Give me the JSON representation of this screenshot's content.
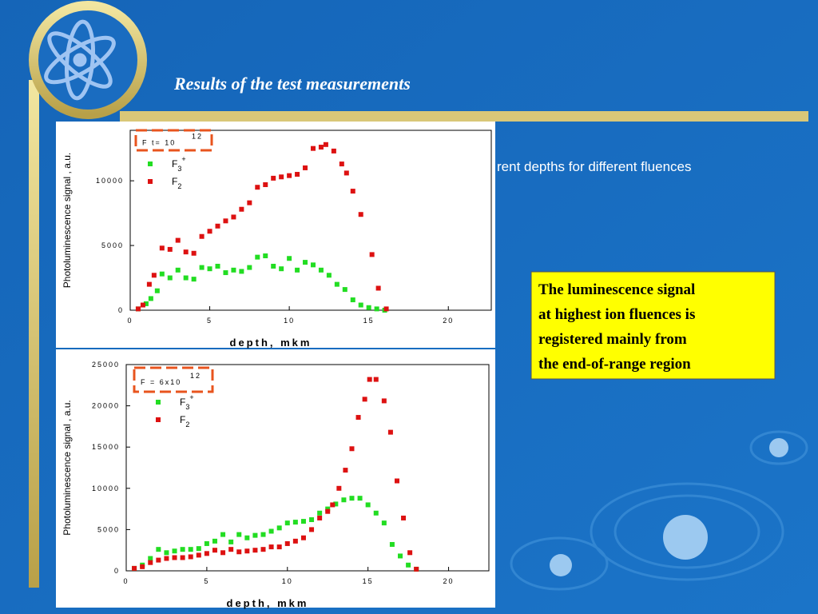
{
  "slide": {
    "title": "Results of the test measurements",
    "partial_text": "rent depths for different fluences",
    "note_lines": [
      "The luminescence signal",
      "at highest ion fluences is",
      "registered mainly from",
      "the end-of-range region"
    ]
  },
  "chart_data": [
    {
      "type": "scatter",
      "xlabel": "depth, mkm",
      "ylabel": "Photoluminescence signal , a.u.",
      "annotation": {
        "text": "F t= 10",
        "exponent": "12"
      },
      "xlim": [
        0,
        22.7
      ],
      "ylim": [
        0,
        13900
      ],
      "xticks": [
        0,
        5,
        10,
        15,
        20
      ],
      "yticks": [
        0,
        5000,
        10000
      ],
      "series": [
        {
          "name": "F3+",
          "color": "#22dd22",
          "x": [
            0.5,
            1,
            1.3,
            1.7,
            2,
            2.5,
            3,
            3.5,
            4,
            4.5,
            5,
            5.5,
            6,
            6.5,
            7,
            7.5,
            8,
            8.5,
            9,
            9.5,
            10,
            10.5,
            11,
            11.5,
            12,
            12.5,
            13,
            13.5,
            14,
            14.5,
            15,
            15.5,
            16
          ],
          "values": [
            100,
            500,
            900,
            1500,
            2800,
            2500,
            3100,
            2500,
            2400,
            3300,
            3200,
            3400,
            2900,
            3100,
            3000,
            3300,
            4100,
            4200,
            3400,
            3200,
            4000,
            3100,
            3700,
            3500,
            3100,
            2700,
            2000,
            1600,
            800,
            400,
            200,
            100,
            0
          ]
        },
        {
          "name": "F2",
          "color": "#dd1111",
          "x": [
            0.5,
            0.8,
            1.2,
            1.5,
            2,
            2.5,
            3,
            3.5,
            4,
            4.5,
            5,
            5.5,
            6,
            6.5,
            7,
            7.5,
            8,
            8.5,
            9,
            9.5,
            10,
            10.5,
            11,
            11.5,
            12,
            12.3,
            12.8,
            13.3,
            13.6,
            14,
            14.5,
            15.2,
            15.6,
            16.1
          ],
          "values": [
            100,
            400,
            2000,
            2700,
            4800,
            4700,
            5400,
            4500,
            4400,
            5700,
            6100,
            6500,
            6900,
            7200,
            7800,
            8300,
            9500,
            9700,
            10200,
            10300,
            10400,
            10500,
            11000,
            12500,
            12600,
            12800,
            12300,
            11300,
            10600,
            9200,
            7400,
            4300,
            1700,
            100
          ]
        }
      ]
    },
    {
      "type": "scatter",
      "xlabel": "depth, mkm",
      "ylabel": "Photoluminescence signal , a.u.",
      "annotation": {
        "text": "F = 6x10",
        "exponent": "12"
      },
      "xlim": [
        0,
        22.5
      ],
      "ylim": [
        0,
        25000
      ],
      "xticks": [
        0,
        5,
        10,
        15,
        20
      ],
      "yticks": [
        0,
        5000,
        10000,
        15000,
        20000,
        25000
      ],
      "series": [
        {
          "name": "F3+",
          "color": "#22dd22",
          "x": [
            0.5,
            1,
            1.5,
            2,
            2.5,
            3,
            3.5,
            4,
            4.5,
            5,
            5.5,
            6,
            6.5,
            7,
            7.5,
            8,
            8.5,
            9,
            9.5,
            10,
            10.5,
            11,
            11.5,
            12,
            12.5,
            13,
            13.5,
            14,
            14.5,
            15,
            15.5,
            16,
            16.5,
            17,
            17.5,
            18
          ],
          "values": [
            300,
            700,
            1500,
            2600,
            2200,
            2400,
            2600,
            2600,
            2700,
            3300,
            3600,
            4400,
            3500,
            4400,
            4000,
            4300,
            4400,
            4800,
            5200,
            5800,
            5900,
            6000,
            6200,
            7000,
            7500,
            8100,
            8600,
            8800,
            8800,
            8000,
            7000,
            5800,
            3200,
            1800,
            700,
            200
          ]
        },
        {
          "name": "F2",
          "color": "#dd1111",
          "x": [
            0.5,
            1,
            1.5,
            2,
            2.5,
            3,
            3.5,
            4,
            4.5,
            5,
            5.5,
            6,
            6.5,
            7,
            7.5,
            8,
            8.5,
            9,
            9.5,
            10,
            10.5,
            11,
            11.5,
            12,
            12.5,
            12.8,
            13.2,
            13.6,
            14,
            14.4,
            14.8,
            15.1,
            15.5,
            16,
            16.4,
            16.8,
            17.2,
            17.6,
            18
          ],
          "values": [
            300,
            500,
            1000,
            1300,
            1500,
            1600,
            1600,
            1700,
            1900,
            2100,
            2500,
            2200,
            2600,
            2300,
            2400,
            2500,
            2600,
            2900,
            2900,
            3300,
            3600,
            4000,
            5000,
            6400,
            7200,
            8000,
            10000,
            12200,
            14800,
            18600,
            20800,
            23200,
            23200,
            20600,
            16800,
            10900,
            6400,
            2200,
            200
          ]
        }
      ]
    }
  ]
}
